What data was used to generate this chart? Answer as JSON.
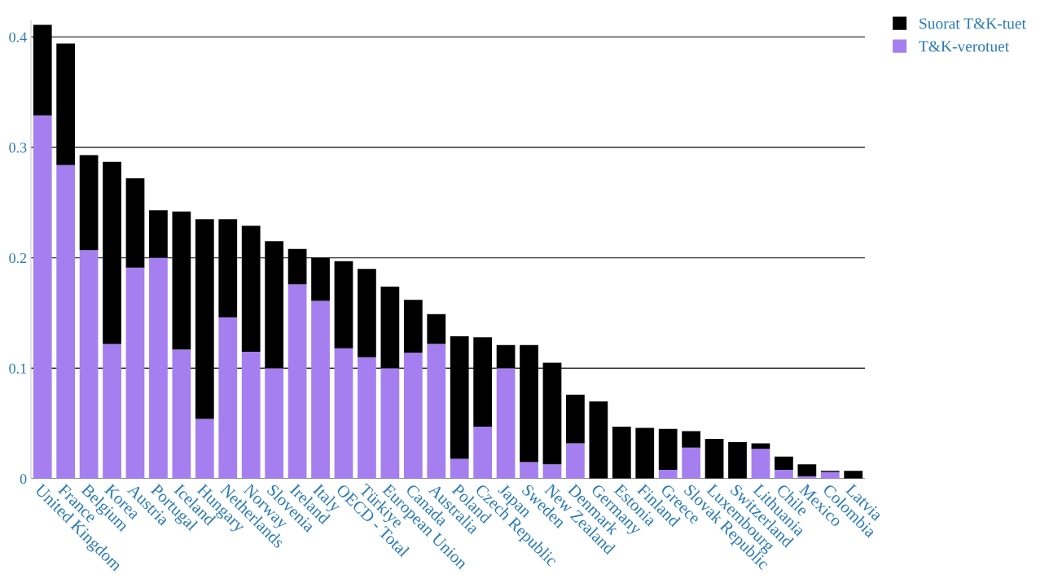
{
  "chart_data": {
    "type": "bar",
    "stacked": true,
    "categories": [
      "United Kingdom",
      "France",
      "Belgium",
      "Korea",
      "Austria",
      "Portugal",
      "Iceland",
      "Hungary",
      "Netherlands",
      "Norway",
      "Slovenia",
      "Ireland",
      "Italy",
      "OECD - Total",
      "Türkiye",
      "European Union",
      "Canada",
      "Australia",
      "Poland",
      "Czech Republic",
      "Japan",
      "Sweden",
      "New Zealand",
      "Denmark",
      "Germany",
      "Estonia",
      "Finland",
      "Greece",
      "Slovak Republic",
      "Luxembourg",
      "Switzerland",
      "Lithuania",
      "Chile",
      "Mexico",
      "Colombia",
      "Latvia"
    ],
    "series": [
      {
        "name": "T&K-verotuet",
        "color": "#a57ff0",
        "values": [
          0.329,
          0.284,
          0.207,
          0.122,
          0.191,
          0.2,
          0.117,
          0.054,
          0.146,
          0.115,
          0.1,
          0.176,
          0.161,
          0.118,
          0.11,
          0.1,
          0.114,
          0.122,
          0.018,
          0.047,
          0.1,
          0.015,
          0.013,
          0.032,
          0,
          0,
          0,
          0.008,
          0.028,
          0,
          0,
          0.027,
          0.008,
          0.002,
          0.006,
          0
        ]
      },
      {
        "name": "Suorat T&K-tuet",
        "color": "#000000",
        "values": [
          0.082,
          0.11,
          0.086,
          0.165,
          0.081,
          0.043,
          0.125,
          0.181,
          0.089,
          0.114,
          0.115,
          0.032,
          0.039,
          0.079,
          0.08,
          0.074,
          0.048,
          0.027,
          0.111,
          0.081,
          0.021,
          0.106,
          0.092,
          0.044,
          0.07,
          0.047,
          0.046,
          0.037,
          0.015,
          0.036,
          0.033,
          0.005,
          0.012,
          0.011,
          0.001,
          0.007
        ]
      }
    ],
    "ylim": [
      0,
      0.415
    ],
    "yticks": [
      {
        "value": 0,
        "label": "0"
      },
      0.1,
      0.2,
      0.3,
      0.4
    ],
    "grid": "y",
    "legend": "top right"
  }
}
